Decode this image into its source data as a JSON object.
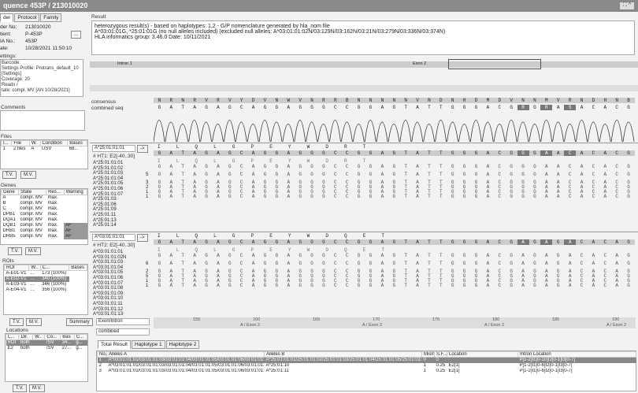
{
  "window": {
    "title": "quence 453P / 213010020"
  },
  "tabs": [
    "der",
    "Protocol",
    "Family"
  ],
  "order": {
    "fields": [
      {
        "label": "der No:",
        "value": "213010020"
      },
      {
        "label": "tient:",
        "value": "P-453P"
      },
      {
        "label": "IA No.:",
        "value": "453P"
      },
      {
        "label": "ate:",
        "value": "10/28/2021 11:50:10"
      }
    ],
    "settings_label": "ettings:",
    "more_button": "...",
    "settings": [
      "Barcode:",
      "Settings Profile: Protrans_default_10",
      "[Settings]",
      "Coverage: 20",
      "Reads /"
    ],
    "state": "tate: compl. MV [AN 10/28/2021]"
  },
  "comments_label": "Comments",
  "files": {
    "label": "Files",
    "columns": [
      "I...",
      "File",
      "W.",
      "Condition",
      "Bases"
    ],
    "rows": [
      [
        "1",
        "2 files",
        "A",
        "USV",
        "68..."
      ]
    ]
  },
  "genes": {
    "label": "Genes",
    "columns": [
      "Gene",
      "State",
      "Res...",
      "Warning"
    ],
    "rows": [
      [
        "A",
        "compl. MV",
        "max.",
        ""
      ],
      [
        "B",
        "compl. MV",
        "max.",
        ""
      ],
      [
        "C",
        "compl. MV",
        "max.",
        ""
      ],
      [
        "DPB1",
        "compl. MV",
        "max.",
        ""
      ],
      [
        "DQA1",
        "compl. MV",
        "max.",
        ""
      ],
      [
        "DQB1",
        "compl. MV",
        "max.",
        "AF"
      ],
      [
        "DRB1",
        "compl. MV",
        "max.",
        "AF"
      ],
      [
        "DRB5",
        "compl. MV",
        "max.",
        "AF"
      ]
    ]
  },
  "rois": {
    "label": "ROIs",
    "columns": [
      "ROI",
      "W..",
      "C...",
      "Bases"
    ],
    "rows": [
      [
        "A-E01-V1",
        "...",
        "173 (100%)"
      ],
      [
        "A-E02-V1",
        "...",
        "340 (100%)"
      ],
      [
        "A-E03-V1",
        "...",
        "346 (100%)"
      ],
      [
        "A-E04-V1",
        "...",
        "356 (100%)"
      ]
    ],
    "summary": "Summary"
  },
  "locations": {
    "label": "Locations",
    "columns": [
      "L...",
      "Dir.",
      "W..",
      "Co...",
      "Bas",
      "C..."
    ],
    "rows": [
      [
        "ROI",
        "both",
        "",
        "/SV",
        "34...",
        "g..."
      ],
      [
        "E2",
        "both",
        "",
        "/SV",
        "27...",
        "g..."
      ]
    ]
  },
  "tv": "T.V.",
  "mv": "M.V.",
  "result": {
    "label": "Result",
    "lines": [
      "heterozygous result(s) - based on haplotypes:  1,2  - G/P nomenclature generated by hla_nom file",
      "A*03:01:01G, *25:01:01G (no null alleles included) (excluded null alleles: A*03:01:01:02N/03:129N/03:162N/03:21N/03:279N/03:336N/03:374N)",
      "HLA informatics group: 3.46.0 Date: 10/11/2021"
    ]
  },
  "overview": {
    "intron": "Intron 1",
    "exon": "Exon 2"
  },
  "consensus_label": "consensus",
  "combined_label": "combined seq",
  "consensus": "NRNRVRVYDVNWVNRRBNNNNNVNDNHDMDVNNMVRNDHNB",
  "combined": "GATAGAGCAGGAGGGCCGGAGTATTGGGACGRGRASACACG",
  "hl_cols": [
    31,
    33,
    35
  ],
  "ht1": {
    "select": "A*25:01:01:01",
    "go": "->",
    "label": "# HT1: E2[-40..30]",
    "aa": "I  L  Q  L  G  P  E  Y  W  D  R  T  ",
    "alleles": [
      "A*25:01:01:01",
      "A*25:01:01:02",
      "A*25:01:01:03",
      "A*25:01:01:04",
      "A*25:01:01:05",
      "A*25:01:01:06",
      "A*25:01:01:07",
      "A*25:01:03",
      "A*25:01:06",
      "A*25:01:09",
      "A*25:01:11",
      "A*25:01:13",
      "A*25:01:14"
    ],
    "counts": [
      "5",
      "3",
      "2",
      "1",
      "1"
    ],
    "seq": "GATAGAGCAGGAGGGCCGGAGTATTGGGACGGGAACACACG"
  },
  "ht2": {
    "select": "A*03:01:01:01",
    "go": "->",
    "label": "# HT2: E2[-40..30]",
    "aa": "I  L  Q  L  G  P  E  Y  W  D  Q  E  T  ",
    "alleles": [
      "A*03:01:01:01",
      "A*03:01:01:02N",
      "A*03:01:01:03",
      "A*03:01:01:04",
      "A*03:01:01:05",
      "A*03:01:01:06",
      "A*03:01:01:07",
      "A*03:01:01:08",
      "A*03:01:01:09",
      "A*03:01:01:10",
      "A*03:01:01:11",
      "A*03:01:01:12",
      "A*03:01:01:13"
    ],
    "counts": [
      "6",
      "2",
      "5",
      "1",
      "1"
    ],
    "seq": "GATAGAGCAGGAGGGCCGGAGTATTGGGACGAGAGACACAG"
  },
  "view": {
    "mode": "Exon/Intron",
    "seq": "combined"
  },
  "ruler": {
    "ticks": [
      "155",
      "160",
      "165",
      "170",
      "175",
      "180",
      "185",
      "190"
    ],
    "labels": [
      "A / Exon 2",
      "A / Exon 2",
      "A / Exon 2",
      "A / Exon 2"
    ]
  },
  "bottom_tabs": [
    "Total Result",
    "Haplotype 1",
    "Haplotype 2"
  ],
  "results": {
    "columns": [
      "No.",
      "Alleles A",
      "Alleles B",
      "Mism.",
      "S.F...",
      "Location",
      "Intron Location"
    ],
    "rows": [
      [
        "1",
        "A*03:01:01:01/03:01:01:03/03:01:01:04/03:01:01:05/03:01:01:06/03:01:01:07/0...",
        "A*25:01:01:01/25:01:01:02/25:01:01:03/25:01:01:04/25:01:01:05/25:01:01:06/2...",
        "0",
        "0",
        "",
        "P[1-2]I1[0-10]I2[0-1]I3[0-7]"
      ],
      [
        "2",
        "A*03:01:01:01/03:01:01:03/03:01:01:04/03:01:01:05/03:01:01:06/03:01:01:07/0...",
        "A*25:01:10",
        "1",
        "0.25",
        "E2[1]",
        "P[1-2]I1[0-6]I2[0-1]I3[0-7]"
      ],
      [
        "3",
        "A*03:01:01:01/03:01:01:03/03:01:01:04/03:01:01:05/03:01:01:06/03:01:01:07/0...",
        "A*25:01:11",
        "1",
        "0.25",
        "E2[1]",
        "P[1-2]I1[0-6]I2[0-1]I3[0-7]"
      ]
    ]
  }
}
